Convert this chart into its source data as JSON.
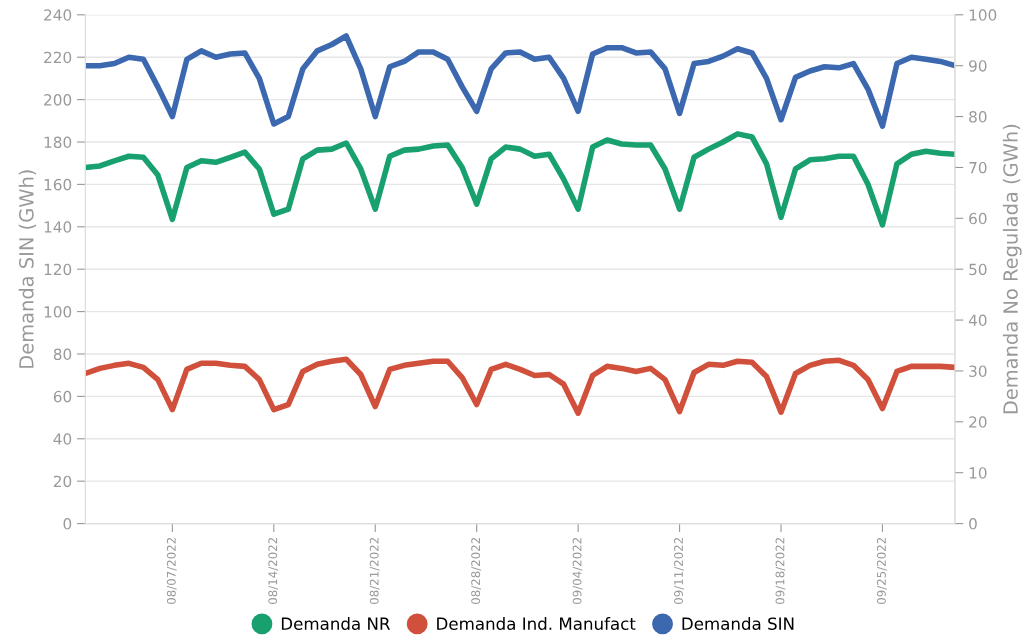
{
  "chart_data": {
    "type": "line",
    "ylabel": "Demanda SIN (GWh)",
    "y2label": "Demanda No Regulada (GWh)",
    "x": [
      "2022-08-01",
      "2022-08-02",
      "2022-08-03",
      "2022-08-04",
      "2022-08-05",
      "2022-08-06",
      "2022-08-07",
      "2022-08-08",
      "2022-08-09",
      "2022-08-10",
      "2022-08-11",
      "2022-08-12",
      "2022-08-13",
      "2022-08-14",
      "2022-08-15",
      "2022-08-16",
      "2022-08-17",
      "2022-08-18",
      "2022-08-19",
      "2022-08-20",
      "2022-08-21",
      "2022-08-22",
      "2022-08-23",
      "2022-08-24",
      "2022-08-25",
      "2022-08-26",
      "2022-08-27",
      "2022-08-28",
      "2022-08-29",
      "2022-08-30",
      "2022-08-31",
      "2022-09-01",
      "2022-09-02",
      "2022-09-03",
      "2022-09-04",
      "2022-09-05",
      "2022-09-06",
      "2022-09-07",
      "2022-09-08",
      "2022-09-09",
      "2022-09-10",
      "2022-09-11",
      "2022-09-12",
      "2022-09-13",
      "2022-09-14",
      "2022-09-15",
      "2022-09-16",
      "2022-09-17",
      "2022-09-18",
      "2022-09-19",
      "2022-09-20",
      "2022-09-21",
      "2022-09-22",
      "2022-09-23",
      "2022-09-24",
      "2022-09-25",
      "2022-09-26",
      "2022-09-27",
      "2022-09-28",
      "2022-09-29",
      "2022-09-30"
    ],
    "xlim": [
      "2022-08-01",
      "2022-09-30"
    ],
    "xticks": [
      {
        "value": "2022-08-07",
        "label": "08/07/2022"
      },
      {
        "value": "2022-08-14",
        "label": "08/14/2022"
      },
      {
        "value": "2022-08-21",
        "label": "08/21/2022"
      },
      {
        "value": "2022-08-28",
        "label": "08/28/2022"
      },
      {
        "value": "2022-09-04",
        "label": "09/04/2022"
      },
      {
        "value": "2022-09-11",
        "label": "09/11/2022"
      },
      {
        "value": "2022-09-18",
        "label": "09/18/2022"
      },
      {
        "value": "2022-09-25",
        "label": "09/25/2022"
      }
    ],
    "ylim": [
      0,
      240
    ],
    "yticks": [
      0,
      20,
      40,
      60,
      80,
      100,
      120,
      140,
      160,
      180,
      200,
      220,
      240
    ],
    "y2lim": [
      0,
      100
    ],
    "y2ticks": [
      0,
      10,
      20,
      30,
      40,
      50,
      60,
      70,
      80,
      90,
      100
    ],
    "grid": "y",
    "legend": "bottom",
    "line_style": "solid",
    "marker": "none",
    "series": [
      {
        "name": "Demanda NR",
        "color": "#18a06f",
        "axis": "y2",
        "values": [
          70,
          70.3,
          71.3,
          72.2,
          72,
          68.5,
          59.8,
          70,
          71.3,
          71,
          72,
          73,
          69.7,
          60.8,
          61.8,
          71.7,
          73.4,
          73.6,
          74.8,
          69.7,
          61.8,
          72.2,
          73.4,
          73.6,
          74.2,
          74.4,
          70,
          62.8,
          71.7,
          74,
          73.6,
          72.2,
          72.6,
          67.7,
          61.8,
          74,
          75.4,
          74.6,
          74.4,
          74.4,
          69.7,
          61.8,
          72,
          73.6,
          75,
          76.6,
          76,
          70.7,
          60.2,
          69.7,
          71.5,
          71.7,
          72.2,
          72.2,
          66.7,
          58.7,
          70.7,
          72.6,
          73.2,
          72.8,
          72.6
        ]
      },
      {
        "name": "Demanda Ind. Manufact",
        "color": "#d0503c",
        "axis": "y2",
        "values": [
          29.5,
          30.5,
          31.1,
          31.5,
          30.7,
          28.3,
          22.4,
          30.3,
          31.5,
          31.5,
          31.1,
          30.9,
          28.3,
          22.4,
          23.4,
          29.9,
          31.3,
          31.9,
          32.3,
          29.3,
          23,
          30.3,
          31.1,
          31.5,
          31.9,
          31.9,
          28.7,
          23.4,
          30.3,
          31.3,
          30.3,
          29.1,
          29.3,
          27.4,
          21.7,
          29.1,
          30.9,
          30.5,
          29.9,
          30.5,
          28.3,
          22,
          29.7,
          31.3,
          31.1,
          31.9,
          31.7,
          28.9,
          21.9,
          29.5,
          31.1,
          31.9,
          32.1,
          31.1,
          28.3,
          22.6,
          29.9,
          30.9,
          30.9,
          30.9,
          30.7
        ]
      },
      {
        "name": "Demanda SIN",
        "color": "#3c68b0",
        "axis": "y",
        "values": [
          216,
          216,
          217,
          220,
          219,
          206,
          192,
          219,
          223,
          220,
          221.5,
          222,
          210,
          188.5,
          192,
          214.5,
          223,
          226,
          230,
          214.5,
          192,
          215.5,
          218,
          222.5,
          222.5,
          219,
          206,
          194.5,
          214.5,
          222,
          222.5,
          219,
          220,
          210,
          194.5,
          221.5,
          224.5,
          224.5,
          222,
          222.5,
          214.5,
          193.5,
          217,
          218,
          220.5,
          224,
          222,
          210,
          190.5,
          210.5,
          213.5,
          215.5,
          215,
          217,
          205,
          187.5,
          217,
          220,
          219,
          218,
          216
        ]
      }
    ]
  }
}
